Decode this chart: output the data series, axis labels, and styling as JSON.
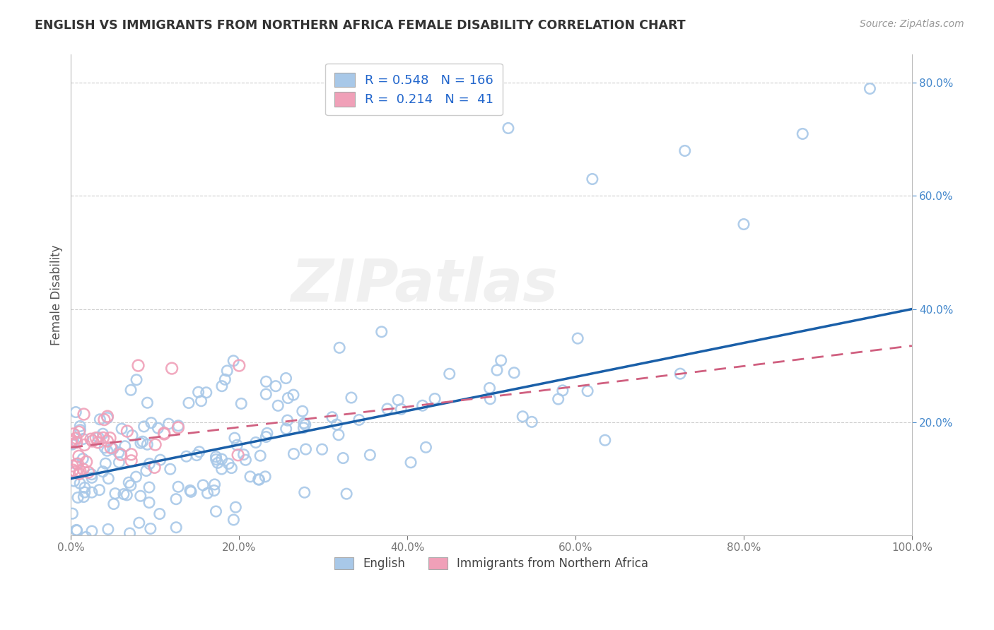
{
  "title": "ENGLISH VS IMMIGRANTS FROM NORTHERN AFRICA FEMALE DISABILITY CORRELATION CHART",
  "source": "Source: ZipAtlas.com",
  "ylabel": "Female Disability",
  "xlim": [
    0.0,
    1.0
  ],
  "ylim": [
    0.0,
    0.85
  ],
  "xticks": [
    0.0,
    0.2,
    0.4,
    0.6,
    0.8,
    1.0
  ],
  "xtick_labels": [
    "0.0%",
    "20.0%",
    "40.0%",
    "60.0%",
    "80.0%",
    "100.0%"
  ],
  "yticks": [
    0.2,
    0.4,
    0.6,
    0.8
  ],
  "ytick_labels": [
    "20.0%",
    "40.0%",
    "60.0%",
    "80.0%"
  ],
  "english_R": 0.548,
  "english_N": 166,
  "immig_R": 0.214,
  "immig_N": 41,
  "english_color": "#a8c8e8",
  "immig_color": "#f0a0b8",
  "english_line_color": "#1a5fa8",
  "immig_line_color": "#d06080",
  "english_line_intercept": 0.1,
  "english_line_slope": 0.3,
  "immig_line_intercept": 0.155,
  "immig_line_slope": 0.18,
  "watermark": "ZIPatlas",
  "tick_color": "#4488cc",
  "grid_color": "#cccccc"
}
